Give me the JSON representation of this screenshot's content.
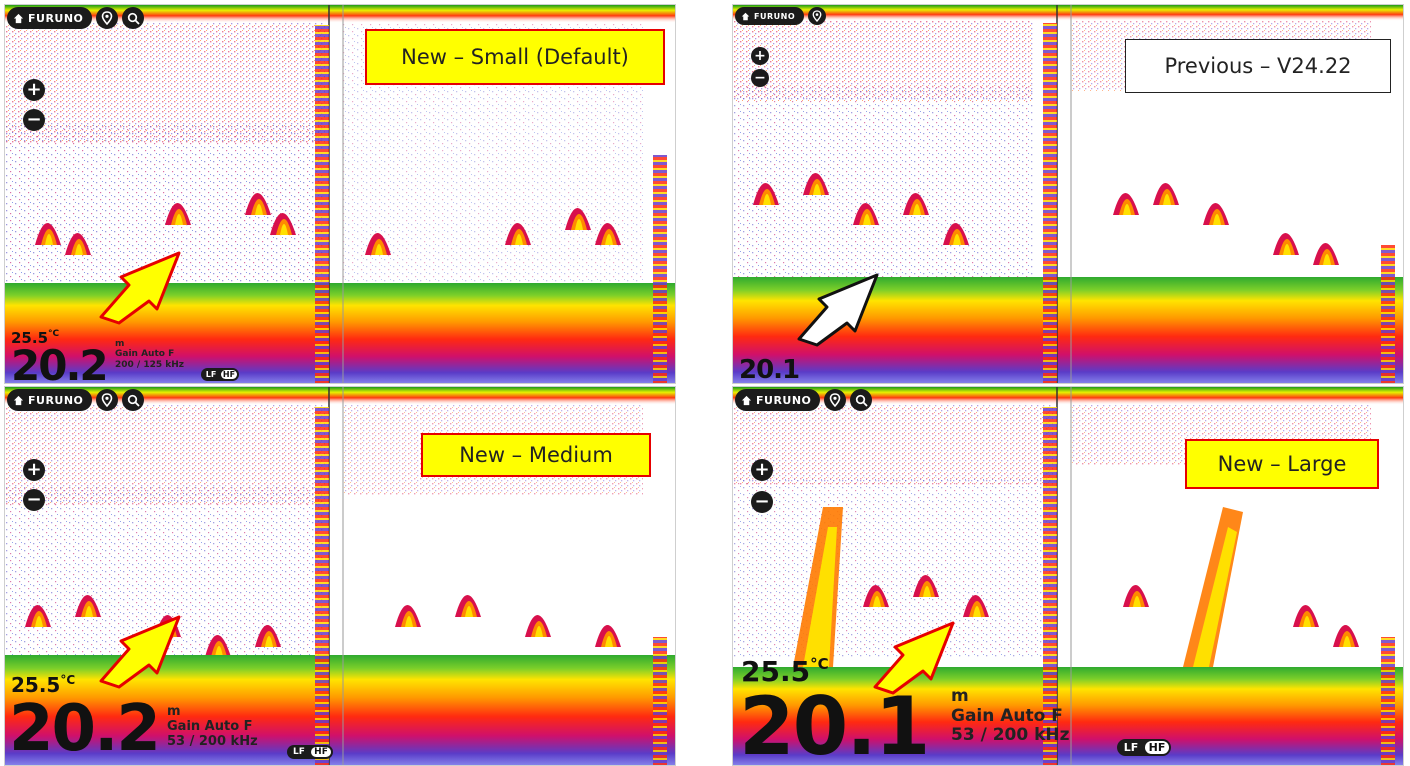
{
  "brand": "FURUNO",
  "icons": [
    "home-icon",
    "location-pin-icon",
    "search-icon",
    "zoom-in-icon",
    "zoom-out-icon"
  ],
  "colors": {
    "caption_fill": "#ffff00",
    "caption_border": "#e60000",
    "arrow_new": "#ffff00",
    "arrow_previous": "#ffffff",
    "seabed_green": "#22aa22"
  },
  "panels": {
    "top_left": {
      "caption": "New – Small (Default)",
      "temperature": "25.5",
      "temp_unit": "°C",
      "depth": "20.2",
      "depth_unit": "m",
      "gain": "Gain Auto F",
      "frequency": "200 / 125 kHz",
      "toggle": [
        "LF",
        "HF"
      ]
    },
    "top_right": {
      "caption": "Previous – V24.22",
      "depth": "20.1"
    },
    "bottom_left": {
      "caption": "New – Medium",
      "temperature": "25.5",
      "temp_unit": "°C",
      "depth": "20.2",
      "depth_unit": "m",
      "gain": "Gain Auto F",
      "frequency": "53 / 200 kHz",
      "toggle": [
        "LF",
        "HF"
      ]
    },
    "bottom_right": {
      "caption": "New – Large",
      "temperature": "25.5",
      "temp_unit": "°C",
      "depth": "20.1",
      "depth_unit": "m",
      "gain": "Gain Auto F",
      "frequency": "53 / 200 kHz",
      "toggle": [
        "LF",
        "HF"
      ]
    }
  }
}
